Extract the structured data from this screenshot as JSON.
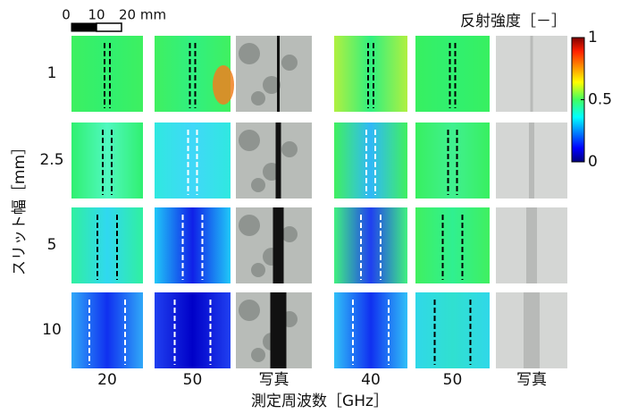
{
  "scale_bar": {
    "labels": [
      "0",
      "10",
      "20 mm"
    ]
  },
  "colorbar": {
    "title": "反射強度［－］",
    "lim": [
      0,
      1
    ],
    "ticks": [
      1,
      0.5,
      0
    ]
  },
  "rows": {
    "label": "スリット幅［mm］",
    "values": [
      "1",
      "2.5",
      "5",
      "10"
    ]
  },
  "columns": {
    "label": "測定周波数［GHz］",
    "values": [
      "20",
      "50",
      "写真",
      "40",
      "50",
      "写真"
    ]
  }
}
